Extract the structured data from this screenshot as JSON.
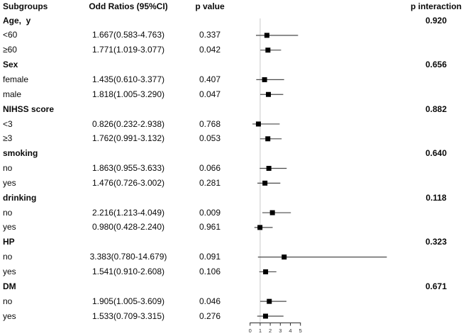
{
  "header": {
    "subgroups": "Subgroups",
    "odds_ratio": "Odd Ratios (95%CI)",
    "p_value": "p value",
    "p_interaction": "p interaction"
  },
  "rows": [
    {
      "type": "group",
      "label": "Age,  y",
      "p_interaction": "0.920"
    },
    {
      "type": "item",
      "label": "<60",
      "or_ci": "1.667(0.583-4.763)",
      "p": "0.337"
    },
    {
      "type": "item",
      "label": "≥60",
      "or_ci": "1.771(1.019-3.077)",
      "p": "0.042"
    },
    {
      "type": "group",
      "label": "Sex",
      "p_interaction": "0.656"
    },
    {
      "type": "item",
      "label": "female",
      "or_ci": "1.435(0.610-3.377)",
      "p": "0.407"
    },
    {
      "type": "item",
      "label": "male",
      "or_ci": "1.818(1.005-3.290)",
      "p": "0.047"
    },
    {
      "type": "group",
      "label": "NIHSS score",
      "p_interaction": "0.882"
    },
    {
      "type": "item",
      "label": "<3",
      "or_ci": "0.826(0.232-2.938)",
      "p": "0.768"
    },
    {
      "type": "item",
      "label": "≥3",
      "or_ci": "1.762(0.991-3.132)",
      "p": "0.053"
    },
    {
      "type": "group",
      "label": "smoking",
      "p_interaction": "0.640"
    },
    {
      "type": "item",
      "label": "no",
      "or_ci": "1.863(0.955-3.633)",
      "p": "0.066"
    },
    {
      "type": "item",
      "label": "yes",
      "or_ci": "1.476(0.726-3.002)",
      "p": "0.281"
    },
    {
      "type": "group",
      "label": "drinking",
      "p_interaction": "0.118"
    },
    {
      "type": "item",
      "label": "no",
      "or_ci": "2.216(1.213-4.049)",
      "p": "0.009"
    },
    {
      "type": "item",
      "label": "yes",
      "or_ci": "0.980(0.428-2.240)",
      "p": "0.961"
    },
    {
      "type": "group",
      "label": "HP",
      "p_interaction": "0.323"
    },
    {
      "type": "item",
      "label": "no",
      "or_ci": "3.383(0.780-14.679)",
      "p": "0.091"
    },
    {
      "type": "item",
      "label": "yes",
      "or_ci": "1.541(0.910-2.608)",
      "p": "0.106"
    },
    {
      "type": "group",
      "label": "DM",
      "p_interaction": "0.671"
    },
    {
      "type": "item",
      "label": "no",
      "or_ci": "1.905(1.005-3.609)",
      "p": "0.046"
    },
    {
      "type": "item",
      "label": "yes",
      "or_ci": "1.533(0.709-3.315)",
      "p": "0.276"
    }
  ],
  "chart_data": {
    "type": "scatter",
    "variant": "forest-plot",
    "title": "",
    "xlabel": "",
    "x_range": [
      0,
      5
    ],
    "x_ticks": [
      0,
      1,
      2,
      3,
      4,
      5
    ],
    "reference_line_x": 1,
    "grid": false,
    "points": [
      {
        "row": 1,
        "subgroup": "Age <60",
        "est": 1.667,
        "lo": 0.583,
        "hi": 4.763
      },
      {
        "row": 2,
        "subgroup": "Age ≥60",
        "est": 1.771,
        "lo": 1.019,
        "hi": 3.077
      },
      {
        "row": 4,
        "subgroup": "Sex female",
        "est": 1.435,
        "lo": 0.61,
        "hi": 3.377
      },
      {
        "row": 5,
        "subgroup": "Sex male",
        "est": 1.818,
        "lo": 1.005,
        "hi": 3.29
      },
      {
        "row": 7,
        "subgroup": "NIHSS <3",
        "est": 0.826,
        "lo": 0.232,
        "hi": 2.938
      },
      {
        "row": 8,
        "subgroup": "NIHSS ≥3",
        "est": 1.762,
        "lo": 0.991,
        "hi": 3.132
      },
      {
        "row": 10,
        "subgroup": "smoking no",
        "est": 1.863,
        "lo": 0.955,
        "hi": 3.633
      },
      {
        "row": 11,
        "subgroup": "smoking yes",
        "est": 1.476,
        "lo": 0.726,
        "hi": 3.002
      },
      {
        "row": 13,
        "subgroup": "drinking no",
        "est": 2.216,
        "lo": 1.213,
        "hi": 4.049
      },
      {
        "row": 14,
        "subgroup": "drinking yes",
        "est": 0.98,
        "lo": 0.428,
        "hi": 2.24
      },
      {
        "row": 16,
        "subgroup": "HP no",
        "est": 3.383,
        "lo": 0.78,
        "hi": 14.679
      },
      {
        "row": 17,
        "subgroup": "HP yes",
        "est": 1.541,
        "lo": 0.91,
        "hi": 2.608
      },
      {
        "row": 19,
        "subgroup": "DM no",
        "est": 1.905,
        "lo": 1.005,
        "hi": 3.609
      },
      {
        "row": 20,
        "subgroup": "DM yes",
        "est": 1.533,
        "lo": 0.709,
        "hi": 3.315
      }
    ]
  },
  "colors": {
    "marker": "#000000",
    "ci_line": "#4a4a4a",
    "reference_line": "#c9c9c9",
    "axis": "#2b2b2b",
    "text": "#0a0a0a"
  }
}
